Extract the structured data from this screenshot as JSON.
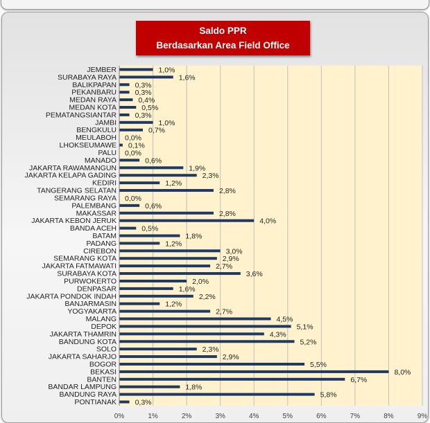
{
  "chart_data": {
    "type": "bar",
    "orientation": "horizontal",
    "title": "Saldo PPR",
    "subtitle": "Berdasarkan Area Field Office",
    "xlim": [
      0,
      9
    ],
    "xticks": [
      "0%",
      "1%",
      "2%",
      "3%",
      "4%",
      "5%",
      "6%",
      "7%",
      "8%",
      "9%"
    ],
    "grid": true,
    "colors": {
      "bar": "#1f3864",
      "plot_area": "#fff2cc",
      "title_box": "#c00000",
      "gridline": "#bfbfbf"
    },
    "categories": [
      "JEMBER",
      "SURABAYA RAYA",
      "BALIKPAPAN",
      "PEKANBARU",
      "MEDAN RAYA",
      "MEDAN KOTA",
      "PEMATANGSIANTAR",
      "JAMBI",
      "BENGKULU",
      "MEULABOH",
      "LHOKSEUMAWE",
      "PALU",
      "MANADO",
      "JAKARTA RAWAMANGUN",
      "JAKARTA KELAPA GADING",
      "KEDIRI",
      "TANGERANG SELATAN",
      "SEMARANG RAYA",
      "PALEMBANG",
      "MAKASSAR",
      "JAKARTA KEBON JERUK",
      "BANDA ACEH",
      "BATAM",
      "PADANG",
      "CIREBON",
      "SEMARANG KOTA",
      "JAKARTA FATMAWATI",
      "SURABAYA KOTA",
      "PURWOKERTO",
      "DENPASAR",
      "JAKARTA PONDOK INDAH",
      "BANJARMASIN",
      "YOGYAKARTA",
      "MALANG",
      "DEPOK",
      "JAKARTA THAMRIN",
      "BANDUNG KOTA",
      "SOLO",
      "JAKARTA SAHARJO",
      "BOGOR",
      "BEKASI",
      "BANTEN",
      "BANDAR LAMPUNG",
      "BANDUNG RAYA",
      "PONTIANAK"
    ],
    "values": [
      1.0,
      1.6,
      0.3,
      0.3,
      0.4,
      0.5,
      0.3,
      1.0,
      0.7,
      0.0,
      0.1,
      0.0,
      0.6,
      1.9,
      2.3,
      1.2,
      2.8,
      0.0,
      0.6,
      2.8,
      4.0,
      0.5,
      1.8,
      1.2,
      3.0,
      2.9,
      2.7,
      3.6,
      2.0,
      1.6,
      2.2,
      1.2,
      2.7,
      4.5,
      5.1,
      4.3,
      5.2,
      2.3,
      2.9,
      5.5,
      8.0,
      6.7,
      1.8,
      5.8,
      0.3
    ],
    "labels": [
      "1,0%",
      "1,6%",
      "0,3%",
      "0,3%",
      "0,4%",
      "0,5%",
      "0,3%",
      "1,0%",
      "0,7%",
      "0,0%",
      "0,1%",
      "0,0%",
      "0,6%",
      "1,9%",
      "2,3%",
      "1,2%",
      "2,8%",
      "0,0%",
      "0,6%",
      "2,8%",
      "4,0%",
      "0,5%",
      "1,8%",
      "1,2%",
      "3,0%",
      "2,9%",
      "2,7%",
      "3,6%",
      "2,0%",
      "1,6%",
      "2,2%",
      "1,2%",
      "2,7%",
      "4,5%",
      "5,1%",
      "4,3%",
      "5,2%",
      "2,3%",
      "2,9%",
      "5,5%",
      "8,0%",
      "6,7%",
      "1,8%",
      "5,8%",
      "0,3%"
    ]
  }
}
